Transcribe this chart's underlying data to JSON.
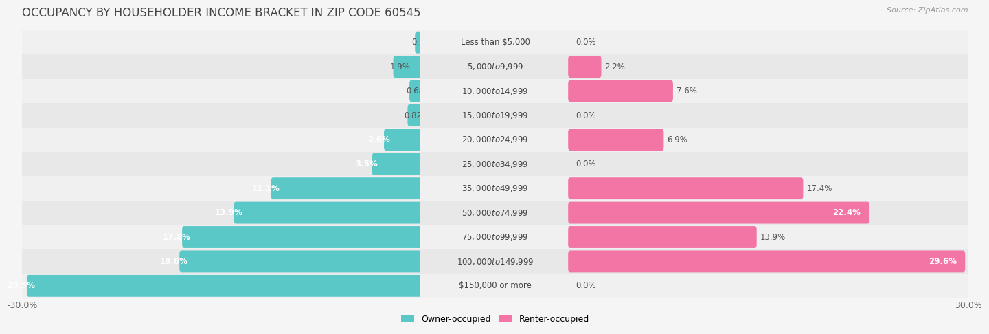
{
  "title": "OCCUPANCY BY HOUSEHOLDER INCOME BRACKET IN ZIP CODE 60545",
  "source": "Source: ZipAtlas.com",
  "categories": [
    "Less than $5,000",
    "$5,000 to $9,999",
    "$10,000 to $14,999",
    "$15,000 to $19,999",
    "$20,000 to $24,999",
    "$25,000 to $34,999",
    "$35,000 to $49,999",
    "$50,000 to $74,999",
    "$75,000 to $99,999",
    "$100,000 to $149,999",
    "$150,000 or more"
  ],
  "owner_values": [
    0.26,
    1.9,
    0.68,
    0.82,
    2.6,
    3.5,
    11.1,
    13.9,
    17.8,
    18.0,
    29.5
  ],
  "renter_values": [
    0.0,
    2.2,
    7.6,
    0.0,
    6.9,
    0.0,
    17.4,
    22.4,
    13.9,
    29.6,
    0.0
  ],
  "owner_color": "#5BC8C8",
  "renter_color": "#F275A5",
  "background_color": "#f5f5f5",
  "row_colors": [
    "#f0f0f0",
    "#e8e8e8"
  ],
  "max_val": 30.0,
  "owner_label": "Owner-occupied",
  "renter_label": "Renter-occupied",
  "title_fontsize": 12,
  "source_fontsize": 8,
  "label_fontsize": 9,
  "category_fontsize": 8.5,
  "value_fontsize": 8.5,
  "bar_height": 0.6
}
